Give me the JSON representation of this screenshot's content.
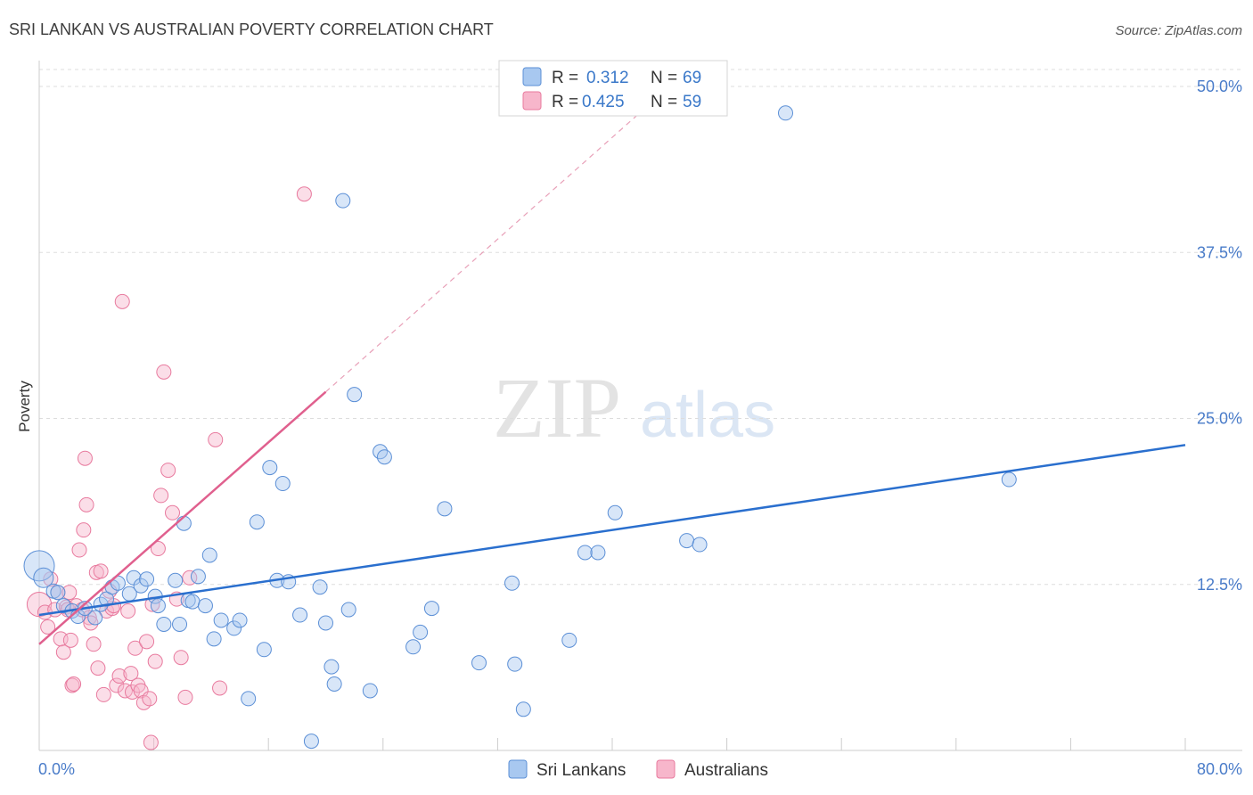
{
  "chart_data": {
    "type": "scatter",
    "title": "SRI LANKAN VS AUSTRALIAN POVERTY CORRELATION CHART",
    "source": "Source: ZipAtlas.com",
    "ylabel": "Poverty",
    "xlabel": "",
    "xlim": [
      0,
      80
    ],
    "ylim": [
      0,
      52
    ],
    "x_tick_labels": [
      "0.0%",
      "80.0%"
    ],
    "y_ticks": [
      12.5,
      25.0,
      37.5,
      50.0
    ],
    "y_tick_labels": [
      "12.5%",
      "25.0%",
      "37.5%",
      "50.0%"
    ],
    "watermark": {
      "zip": "ZIP",
      "atlas": "atlas"
    },
    "legend": {
      "r_label": "R =",
      "n_label": "N =",
      "entries": [
        {
          "series": "Sri Lankans",
          "r": "0.312",
          "n": "69"
        },
        {
          "series": "Australians",
          "r": "0.425",
          "n": "59"
        }
      ]
    },
    "colors": {
      "sri_fill": "#a8c8f0",
      "sri_stroke": "#5b8fd6",
      "sri_line": "#2a6fce",
      "aus_fill": "#f7b6cb",
      "aus_stroke": "#e87a9e",
      "aus_line": "#e0608e",
      "grid": "#dddddd",
      "tick_text": "#4a7cc9"
    },
    "series": [
      {
        "name": "Sri Lankans",
        "trend": {
          "x0": 0,
          "y0": 10.2,
          "x1": 80,
          "y1": 23.0
        },
        "points": [
          [
            0.0,
            13.9,
            3
          ],
          [
            0.3,
            13.0,
            2
          ],
          [
            1.0,
            12.0,
            1
          ],
          [
            1.3,
            11.9,
            1
          ],
          [
            1.7,
            10.9,
            1
          ],
          [
            2.3,
            10.5,
            1
          ],
          [
            2.7,
            10.1,
            1
          ],
          [
            3.2,
            10.7,
            1
          ],
          [
            3.9,
            10.0,
            1
          ],
          [
            4.3,
            11.0,
            1
          ],
          [
            4.7,
            11.4,
            1
          ],
          [
            5.1,
            12.3,
            1
          ],
          [
            5.5,
            12.6,
            1
          ],
          [
            6.3,
            11.8,
            1
          ],
          [
            6.6,
            13.0,
            1
          ],
          [
            7.1,
            12.4,
            1
          ],
          [
            7.5,
            12.9,
            1
          ],
          [
            8.1,
            11.6,
            1
          ],
          [
            8.3,
            10.9,
            1
          ],
          [
            8.7,
            9.5,
            1
          ],
          [
            9.5,
            12.8,
            1
          ],
          [
            9.8,
            9.5,
            1
          ],
          [
            10.1,
            17.1,
            1
          ],
          [
            10.4,
            11.3,
            1
          ],
          [
            10.7,
            11.2,
            1
          ],
          [
            11.1,
            13.1,
            1
          ],
          [
            11.6,
            10.9,
            1
          ],
          [
            11.9,
            14.7,
            1
          ],
          [
            12.2,
            8.4,
            1
          ],
          [
            12.7,
            9.8,
            1
          ],
          [
            13.6,
            9.2,
            1
          ],
          [
            14.0,
            9.8,
            1
          ],
          [
            14.6,
            3.9,
            1
          ],
          [
            15.2,
            17.2,
            1
          ],
          [
            15.7,
            7.6,
            1
          ],
          [
            16.1,
            21.3,
            1
          ],
          [
            16.6,
            12.8,
            1
          ],
          [
            17.0,
            20.1,
            1
          ],
          [
            17.4,
            12.7,
            1
          ],
          [
            18.2,
            10.2,
            1
          ],
          [
            19.0,
            0.7,
            1
          ],
          [
            19.6,
            12.3,
            1
          ],
          [
            20.0,
            9.6,
            1
          ],
          [
            20.4,
            6.3,
            1
          ],
          [
            20.6,
            5.0,
            1
          ],
          [
            21.2,
            41.4,
            1
          ],
          [
            21.6,
            10.6,
            1
          ],
          [
            22.0,
            26.8,
            1
          ],
          [
            23.1,
            4.5,
            1
          ],
          [
            23.8,
            22.5,
            1
          ],
          [
            24.1,
            22.1,
            1
          ],
          [
            26.1,
            7.8,
            1
          ],
          [
            26.6,
            8.9,
            1
          ],
          [
            27.4,
            10.7,
            1
          ],
          [
            28.3,
            18.2,
            1
          ],
          [
            30.7,
            6.6,
            1
          ],
          [
            33.0,
            12.6,
            1
          ],
          [
            33.2,
            6.5,
            1
          ],
          [
            33.8,
            3.1,
            1
          ],
          [
            37.0,
            8.3,
            1
          ],
          [
            38.1,
            14.9,
            1
          ],
          [
            39.0,
            14.9,
            1
          ],
          [
            40.2,
            17.9,
            1
          ],
          [
            45.2,
            15.8,
            1
          ],
          [
            46.1,
            15.5,
            1
          ],
          [
            52.1,
            48.0,
            1
          ],
          [
            67.7,
            20.4,
            1
          ]
        ]
      },
      {
        "name": "Australians",
        "trend": {
          "x0": 0,
          "y0": 8.0,
          "x1": 20,
          "y1": 27.0,
          "dash_x1": 44,
          "dash_y1": 50.0
        },
        "points": [
          [
            0.0,
            11.0,
            2
          ],
          [
            0.4,
            10.4,
            1
          ],
          [
            0.6,
            9.3,
            1
          ],
          [
            0.8,
            12.9,
            1
          ],
          [
            1.1,
            10.6,
            1
          ],
          [
            1.3,
            11.9,
            1
          ],
          [
            1.5,
            8.4,
            1
          ],
          [
            1.7,
            7.4,
            1
          ],
          [
            1.9,
            10.8,
            1
          ],
          [
            2.0,
            10.6,
            1
          ],
          [
            2.1,
            11.9,
            1
          ],
          [
            2.2,
            8.3,
            1
          ],
          [
            2.3,
            4.9,
            1
          ],
          [
            2.4,
            5.0,
            1
          ],
          [
            2.6,
            10.9,
            1
          ],
          [
            2.8,
            15.1,
            1
          ],
          [
            3.0,
            10.6,
            1
          ],
          [
            3.1,
            16.6,
            1
          ],
          [
            3.2,
            22.0,
            1
          ],
          [
            3.3,
            18.5,
            1
          ],
          [
            3.5,
            10.0,
            1
          ],
          [
            3.6,
            9.6,
            1
          ],
          [
            3.8,
            8.0,
            1
          ],
          [
            4.0,
            13.4,
            1
          ],
          [
            4.1,
            6.2,
            1
          ],
          [
            4.3,
            13.5,
            1
          ],
          [
            4.5,
            4.2,
            1
          ],
          [
            4.7,
            10.5,
            1
          ],
          [
            4.9,
            12.0,
            1
          ],
          [
            5.1,
            10.7,
            1
          ],
          [
            5.2,
            10.9,
            1
          ],
          [
            5.4,
            4.9,
            1
          ],
          [
            5.6,
            5.6,
            1
          ],
          [
            5.8,
            33.8,
            1
          ],
          [
            6.0,
            4.5,
            1
          ],
          [
            6.2,
            10.5,
            1
          ],
          [
            6.4,
            5.8,
            1
          ],
          [
            6.5,
            4.4,
            1
          ],
          [
            6.7,
            7.7,
            1
          ],
          [
            6.9,
            4.9,
            1
          ],
          [
            7.1,
            4.5,
            1
          ],
          [
            7.3,
            3.6,
            1
          ],
          [
            7.5,
            8.2,
            1
          ],
          [
            7.7,
            3.9,
            1
          ],
          [
            7.9,
            11.0,
            1
          ],
          [
            8.1,
            6.7,
            1
          ],
          [
            8.3,
            15.2,
            1
          ],
          [
            8.5,
            19.2,
            1
          ],
          [
            8.7,
            28.5,
            1
          ],
          [
            9.0,
            21.1,
            1
          ],
          [
            9.3,
            17.9,
            1
          ],
          [
            9.6,
            11.4,
            1
          ],
          [
            9.9,
            7.0,
            1
          ],
          [
            10.2,
            4.0,
            1
          ],
          [
            10.5,
            13.0,
            1
          ],
          [
            12.3,
            23.4,
            1
          ],
          [
            12.6,
            4.7,
            1
          ],
          [
            7.8,
            0.6,
            1
          ],
          [
            18.5,
            41.9,
            1
          ]
        ]
      }
    ]
  }
}
